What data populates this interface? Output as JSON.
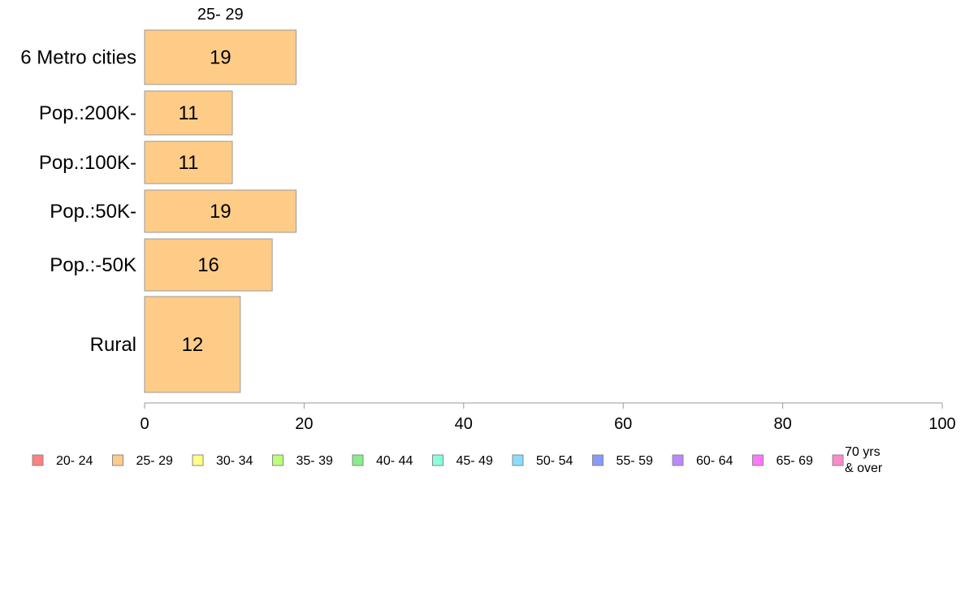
{
  "chart_data": {
    "type": "bar",
    "orientation": "horizontal",
    "series_header": "25- 29",
    "categories": [
      "6 Metro cities",
      "Pop.:200K-",
      "Pop.:100K-",
      "Pop.:50K-",
      "Pop.:-50K",
      "Rural"
    ],
    "series": [
      {
        "name": "25- 29",
        "values": [
          19,
          11,
          11,
          19,
          16,
          12
        ],
        "labels": [
          "19",
          "11",
          "11",
          "19",
          "16",
          "12"
        ]
      }
    ],
    "xlim": [
      0,
      100
    ],
    "x_ticks": [
      0,
      20,
      40,
      60,
      80,
      100
    ],
    "x_tick_labels": [
      "0",
      "20",
      "40",
      "60",
      "80",
      "100"
    ],
    "grid": false,
    "legend_placement": "bottom",
    "legend": [
      {
        "label": "20- 24",
        "color": "#ff8080"
      },
      {
        "label": "25- 29",
        "color": "#ffcc88"
      },
      {
        "label": "30- 34",
        "color": "#ffff88"
      },
      {
        "label": "35- 39",
        "color": "#bbff77"
      },
      {
        "label": "40- 44",
        "color": "#88ee88"
      },
      {
        "label": "45- 49",
        "color": "#88ffdd"
      },
      {
        "label": "50- 54",
        "color": "#88ddff"
      },
      {
        "label": "55- 59",
        "color": "#8899ff"
      },
      {
        "label": "60- 64",
        "color": "#bb88ff"
      },
      {
        "label": "65- 69",
        "color": "#ff77ff"
      },
      {
        "label": "70 yrs\n& over",
        "color": "#ff88cc"
      }
    ],
    "bar_color": "#ffcc88",
    "bar_stroke": "#999999",
    "axis_color": "#999999"
  }
}
